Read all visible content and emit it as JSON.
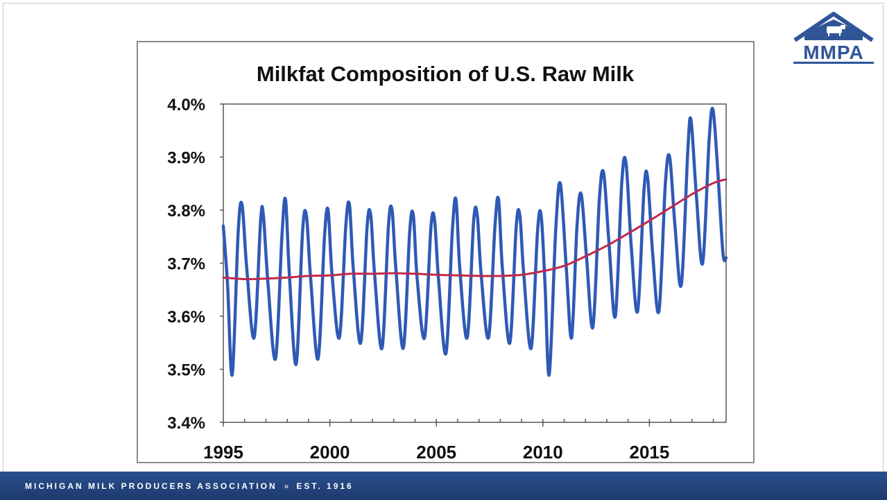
{
  "brand": {
    "logo_text": "MMPA",
    "footer_org": "MICHIGAN MILK PRODUCERS ASSOCIATION",
    "footer_separator": "»",
    "footer_est": "EST. 1916",
    "colors": {
      "primary": "#2f5597",
      "footer": "#20427a"
    }
  },
  "chart_data": {
    "type": "line",
    "title": "Milkfat Composition of U.S. Raw Milk",
    "xlabel": "",
    "ylabel": "",
    "xlim": [
      1995,
      2018.6
    ],
    "ylim": [
      3.4,
      4.0
    ],
    "x_ticks": [
      1995,
      2000,
      2005,
      2010,
      2015
    ],
    "y_ticks": [
      "3.4%",
      "3.5%",
      "3.6%",
      "3.7%",
      "3.8%",
      "3.9%",
      "4.0%"
    ],
    "grid": false,
    "legend": "none",
    "series": [
      {
        "color": "#2e5ab5",
        "points": [
          [
            1995.0,
            3.77
          ],
          [
            1995.2,
            3.66
          ],
          [
            1995.42,
            3.49
          ],
          [
            1995.7,
            3.76
          ],
          [
            1995.88,
            3.81
          ],
          [
            1996.1,
            3.69
          ],
          [
            1996.45,
            3.56
          ],
          [
            1996.75,
            3.78
          ],
          [
            1996.88,
            3.79
          ],
          [
            1997.1,
            3.66
          ],
          [
            1997.45,
            3.52
          ],
          [
            1997.75,
            3.75
          ],
          [
            1997.92,
            3.82
          ],
          [
            1998.1,
            3.68
          ],
          [
            1998.42,
            3.51
          ],
          [
            1998.72,
            3.76
          ],
          [
            1998.9,
            3.79
          ],
          [
            1999.1,
            3.67
          ],
          [
            1999.45,
            3.52
          ],
          [
            1999.75,
            3.75
          ],
          [
            1999.92,
            3.8
          ],
          [
            2000.1,
            3.68
          ],
          [
            2000.45,
            3.56
          ],
          [
            2000.75,
            3.77
          ],
          [
            2000.92,
            3.81
          ],
          [
            2001.1,
            3.69
          ],
          [
            2001.45,
            3.55
          ],
          [
            2001.75,
            3.77
          ],
          [
            2001.92,
            3.79
          ],
          [
            2002.1,
            3.68
          ],
          [
            2002.45,
            3.54
          ],
          [
            2002.75,
            3.77
          ],
          [
            2002.92,
            3.8
          ],
          [
            2003.1,
            3.69
          ],
          [
            2003.45,
            3.54
          ],
          [
            2003.75,
            3.76
          ],
          [
            2003.92,
            3.79
          ],
          [
            2004.1,
            3.67
          ],
          [
            2004.45,
            3.56
          ],
          [
            2004.75,
            3.77
          ],
          [
            2004.92,
            3.78
          ],
          [
            2005.1,
            3.67
          ],
          [
            2005.45,
            3.53
          ],
          [
            2005.75,
            3.76
          ],
          [
            2005.92,
            3.82
          ],
          [
            2006.1,
            3.69
          ],
          [
            2006.45,
            3.56
          ],
          [
            2006.75,
            3.78
          ],
          [
            2006.92,
            3.79
          ],
          [
            2007.1,
            3.68
          ],
          [
            2007.45,
            3.56
          ],
          [
            2007.75,
            3.77
          ],
          [
            2007.92,
            3.82
          ],
          [
            2008.1,
            3.69
          ],
          [
            2008.45,
            3.55
          ],
          [
            2008.75,
            3.77
          ],
          [
            2008.92,
            3.79
          ],
          [
            2009.1,
            3.68
          ],
          [
            2009.45,
            3.54
          ],
          [
            2009.75,
            3.76
          ],
          [
            2009.92,
            3.79
          ],
          [
            2010.1,
            3.66
          ],
          [
            2010.3,
            3.49
          ],
          [
            2010.6,
            3.76
          ],
          [
            2010.82,
            3.85
          ],
          [
            2011.1,
            3.69
          ],
          [
            2011.35,
            3.56
          ],
          [
            2011.6,
            3.77
          ],
          [
            2011.8,
            3.83
          ],
          [
            2012.05,
            3.71
          ],
          [
            2012.35,
            3.58
          ],
          [
            2012.65,
            3.82
          ],
          [
            2012.85,
            3.87
          ],
          [
            2013.1,
            3.74
          ],
          [
            2013.4,
            3.6
          ],
          [
            2013.7,
            3.85
          ],
          [
            2013.9,
            3.89
          ],
          [
            2014.15,
            3.73
          ],
          [
            2014.45,
            3.61
          ],
          [
            2014.75,
            3.84
          ],
          [
            2014.92,
            3.86
          ],
          [
            2015.15,
            3.72
          ],
          [
            2015.45,
            3.61
          ],
          [
            2015.75,
            3.85
          ],
          [
            2015.95,
            3.9
          ],
          [
            2016.2,
            3.77
          ],
          [
            2016.5,
            3.66
          ],
          [
            2016.8,
            3.91
          ],
          [
            2016.95,
            3.97
          ],
          [
            2017.2,
            3.83
          ],
          [
            2017.5,
            3.7
          ],
          [
            2017.8,
            3.93
          ],
          [
            2017.98,
            3.99
          ],
          [
            2018.2,
            3.88
          ],
          [
            2018.45,
            3.72
          ],
          [
            2018.6,
            3.71
          ]
        ]
      },
      {
        "color": "#c0284a",
        "points": [
          [
            1995.0,
            3.673
          ],
          [
            1996.0,
            3.67
          ],
          [
            1997.0,
            3.671
          ],
          [
            1998.0,
            3.673
          ],
          [
            1999.0,
            3.676
          ],
          [
            2000.0,
            3.677
          ],
          [
            2001.0,
            3.68
          ],
          [
            2002.0,
            3.68
          ],
          [
            2003.0,
            3.681
          ],
          [
            2004.0,
            3.68
          ],
          [
            2005.0,
            3.678
          ],
          [
            2006.0,
            3.677
          ],
          [
            2007.0,
            3.676
          ],
          [
            2008.0,
            3.676
          ],
          [
            2009.0,
            3.678
          ],
          [
            2010.0,
            3.685
          ],
          [
            2011.0,
            3.695
          ],
          [
            2012.0,
            3.713
          ],
          [
            2013.0,
            3.733
          ],
          [
            2014.0,
            3.756
          ],
          [
            2015.0,
            3.78
          ],
          [
            2016.0,
            3.805
          ],
          [
            2017.0,
            3.83
          ],
          [
            2018.0,
            3.851
          ],
          [
            2018.6,
            3.858
          ]
        ]
      }
    ]
  }
}
